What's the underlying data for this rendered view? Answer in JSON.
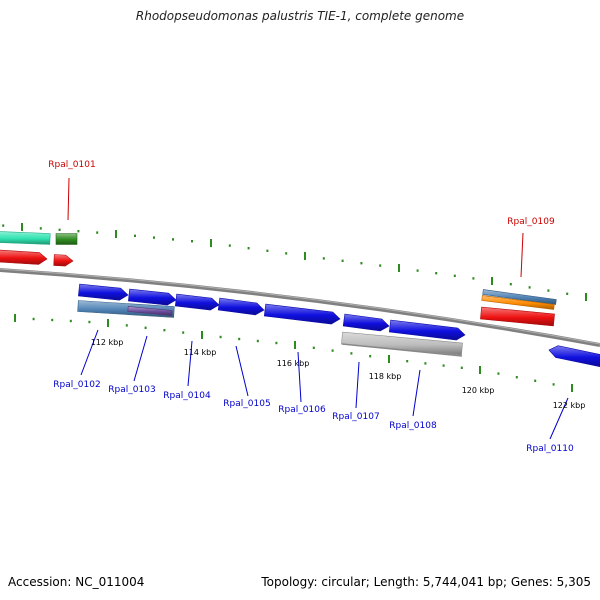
{
  "title": "Rhodopseudomonas palustris TIE-1, complete genome",
  "footer": {
    "accession": "Accession: NC_011004",
    "stats": "Topology: circular; Length: 5,744,041 bp; Genes: 5,305"
  },
  "colors": {
    "background": "#ffffff",
    "backbone": "#7f7f7f",
    "tick": "#2e8b20",
    "plus_label": "#cc0000",
    "minus_label": "#0000cc",
    "blue_gene": "#1010e0",
    "red_gene": "#ee1111",
    "teal_gene": "#2fe3b0",
    "green_gene": "#2e8b20",
    "orange_gene": "#ff8c00",
    "steel_gene": "#4f82b4",
    "gray_gene": "#bdbdbd"
  },
  "scale_labels": [
    "112 kbp",
    "114 kbp",
    "116 kbp",
    "118 kbp",
    "120 kbp",
    "122 kbp"
  ],
  "gene_labels": {
    "plus": [
      "Rpal_0101",
      "Rpal_0109"
    ],
    "minus": [
      "Rpal_0102",
      "Rpal_0103",
      "Rpal_0104",
      "Rpal_0105",
      "Rpal_0106",
      "Rpal_0107",
      "Rpal_0108",
      "Rpal_0110"
    ]
  }
}
